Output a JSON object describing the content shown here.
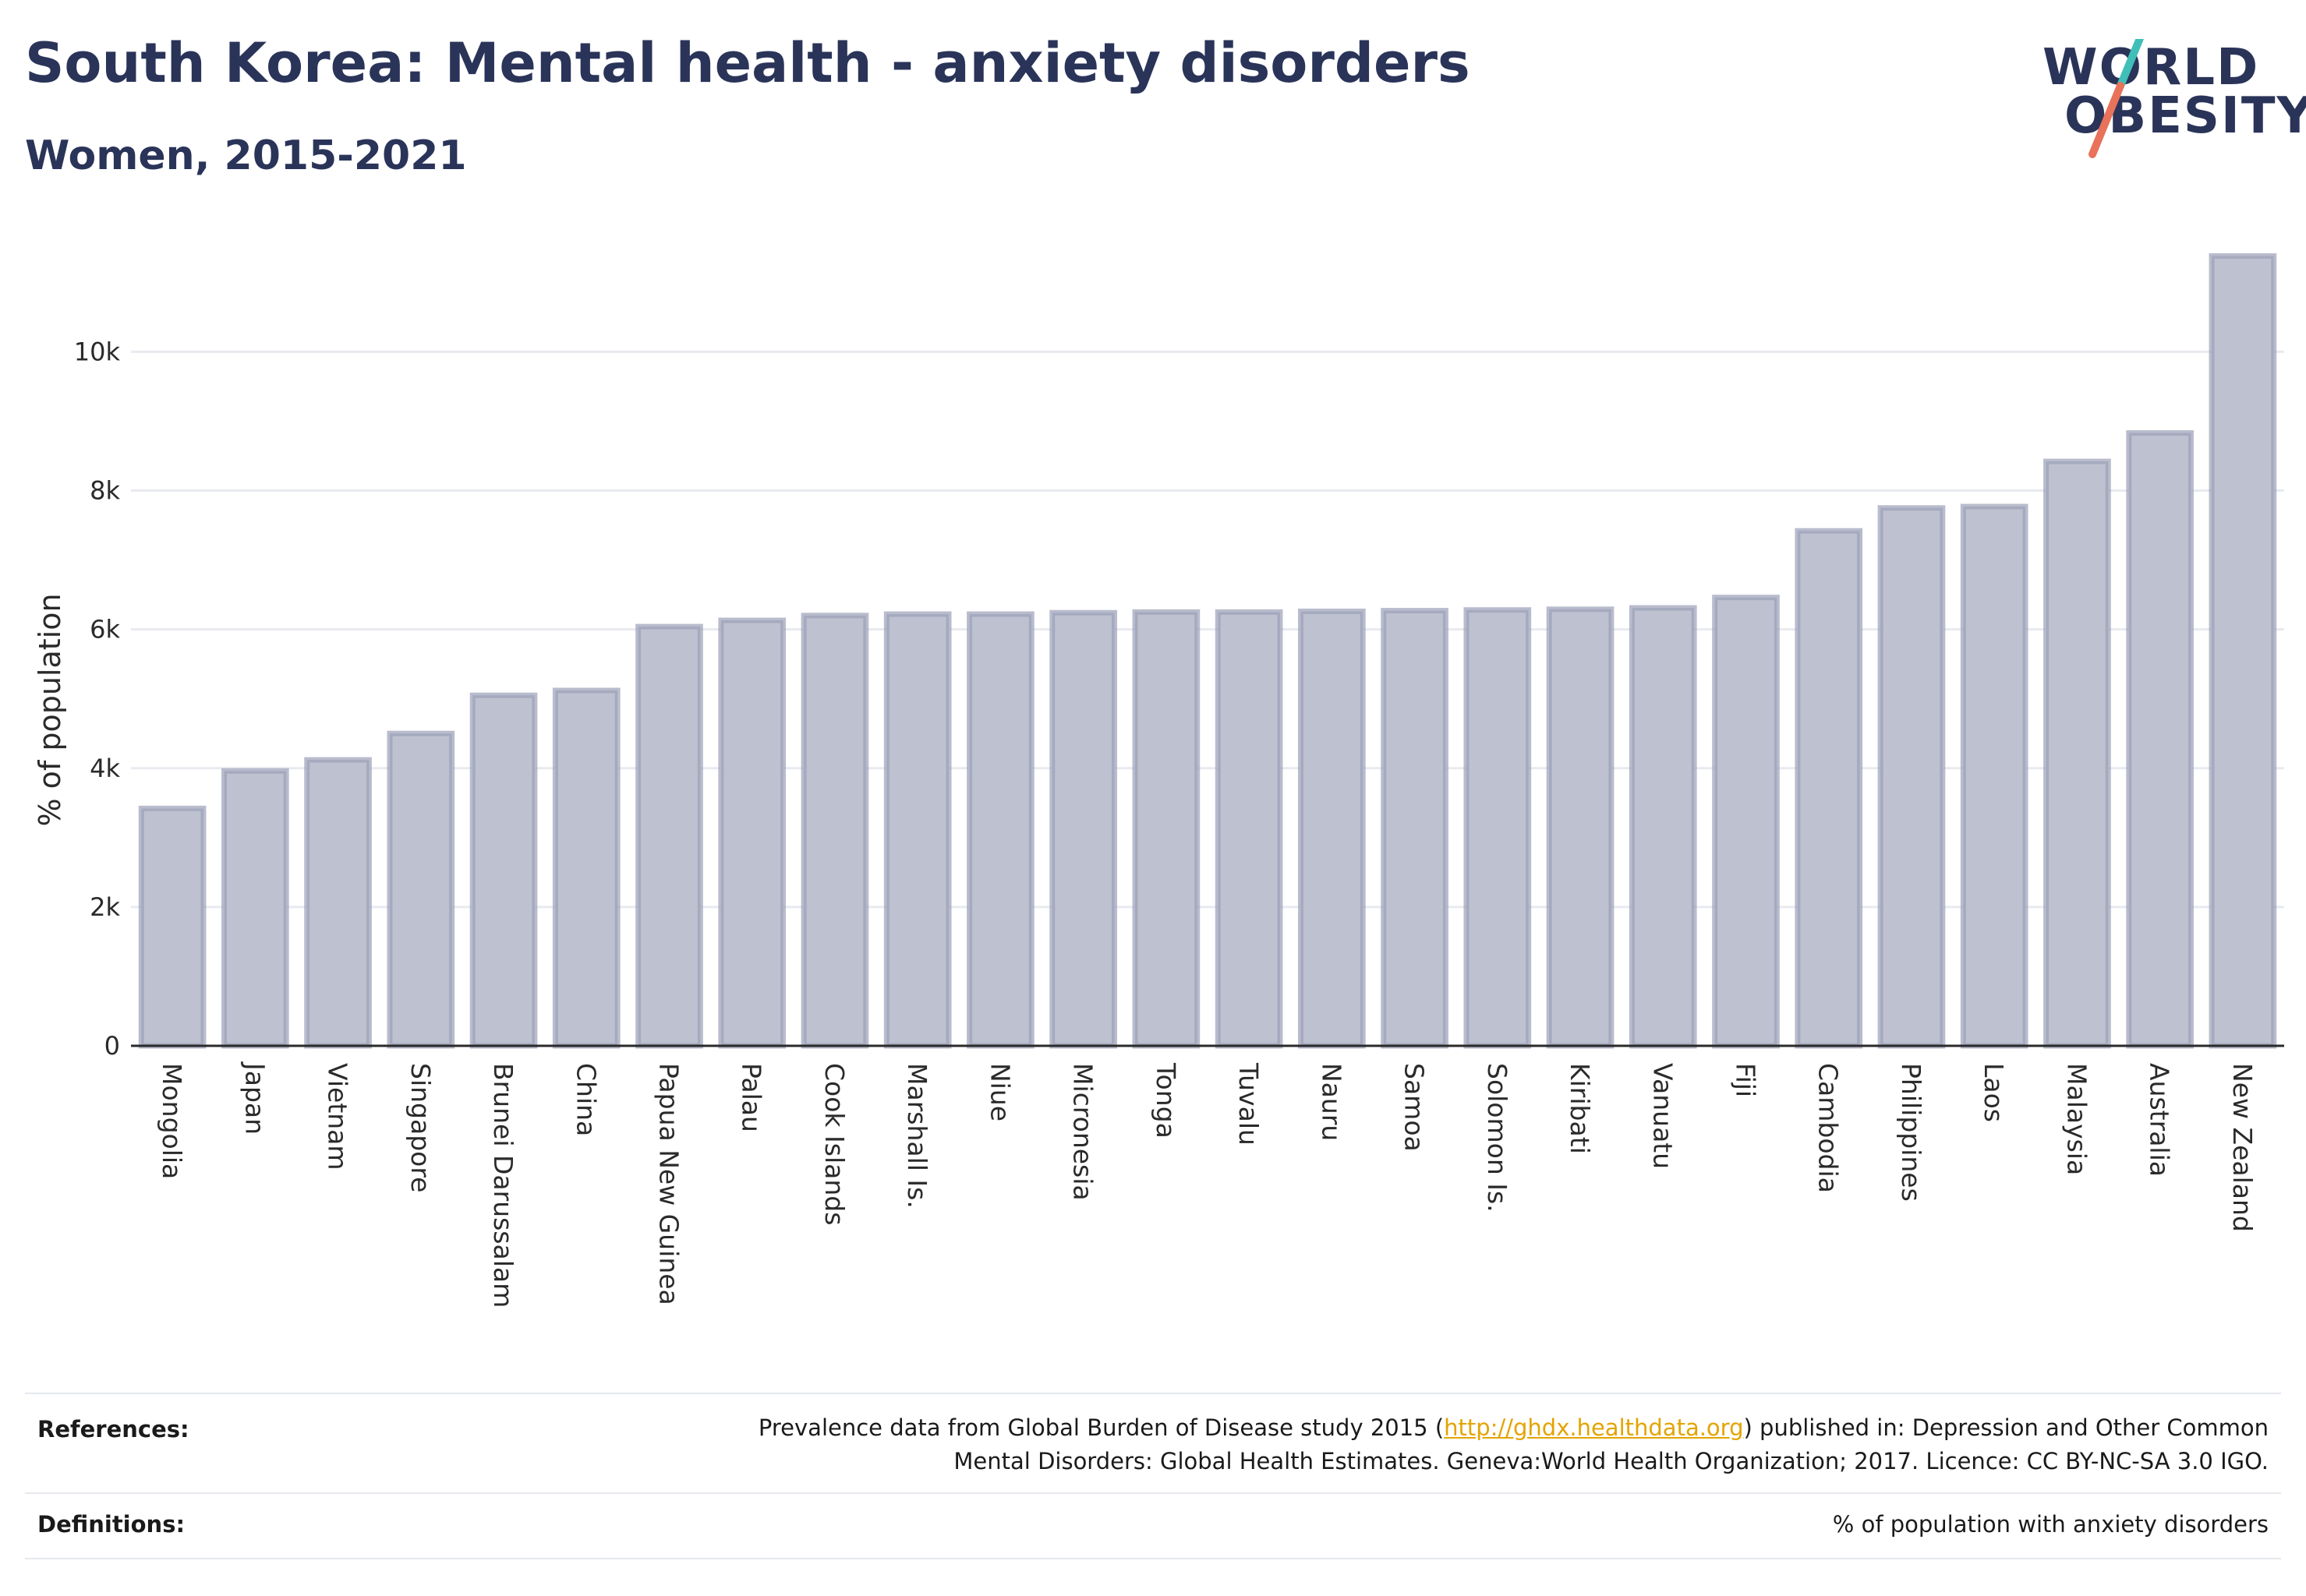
{
  "header": {
    "title": "South Korea: Mental health - anxiety disorders",
    "subtitle": "Women, 2015-2021"
  },
  "logo": {
    "line1": "WORLD",
    "line2": "OBESITY",
    "colors": {
      "text": "#2a3459",
      "slash_top": "#3fbfb8",
      "slash_bottom": "#e8725a"
    }
  },
  "chart_data": {
    "type": "bar",
    "ylabel": "% of population",
    "xlabel": "",
    "ylim": [
      0,
      11700
    ],
    "yticks": [
      0,
      2000,
      4000,
      6000,
      8000,
      10000
    ],
    "ytick_labels": [
      "0",
      "2k",
      "4k",
      "6k",
      "8k",
      "10k"
    ],
    "grid": true,
    "bar_fill": "#bec2d0",
    "bar_stroke": "#9aa0b8",
    "categories": [
      "Mongolia",
      "Japan",
      "Vietnam",
      "Singapore",
      "Brunei Darussalam",
      "China",
      "Papua New Guinea",
      "Palau",
      "Cook Islands",
      "Marshall Is.",
      "Niue",
      "Micronesia",
      "Tonga",
      "Tuvalu",
      "Nauru",
      "Samoa",
      "Solomon Is.",
      "Kiribati",
      "Vanuatu",
      "Fiji",
      "Cambodia",
      "Philippines",
      "Laos",
      "Malaysia",
      "Australia",
      "New Zealand"
    ],
    "values": [
      3420,
      3960,
      4120,
      4500,
      5050,
      5120,
      6040,
      6130,
      6200,
      6220,
      6220,
      6240,
      6250,
      6250,
      6260,
      6270,
      6280,
      6290,
      6310,
      6460,
      7420,
      7750,
      7770,
      8420,
      8830,
      11380
    ]
  },
  "footer": {
    "references_label": "References:",
    "references_pre": "Prevalence data from Global Burden of Disease study 2015 (",
    "references_link": "http://ghdx.healthdata.org",
    "references_post": ") published in: Depression and Other Common",
    "references_line2": "Mental Disorders: Global Health Estimates. Geneva:World Health Organization; 2017. Licence: CC BY-NC-SA 3.0 IGO.",
    "definitions_label": "Definitions:",
    "definitions_text": "% of population with anxiety disorders"
  }
}
